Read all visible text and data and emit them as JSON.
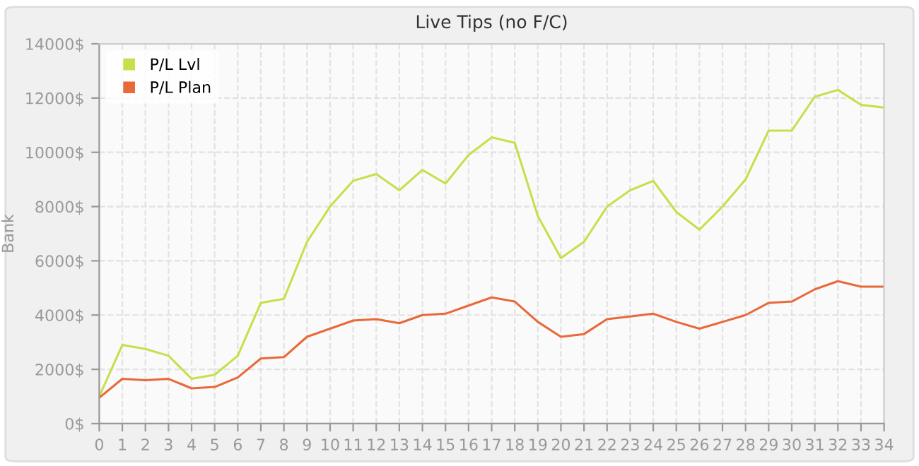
{
  "chart_data": {
    "type": "line",
    "title": "Live Tips (no F/C)",
    "ylabel": "Bank",
    "x": [
      0,
      1,
      2,
      3,
      4,
      5,
      6,
      7,
      8,
      9,
      10,
      11,
      12,
      13,
      14,
      15,
      16,
      17,
      18,
      19,
      20,
      21,
      22,
      23,
      24,
      25,
      26,
      27,
      28,
      29,
      30,
      31,
      32,
      33,
      34
    ],
    "series": [
      {
        "name": "P/L Lvl",
        "color": "#c5e04a",
        "values": [
          1000,
          2900,
          2750,
          2500,
          1650,
          1800,
          2500,
          4450,
          4600,
          6700,
          8000,
          8950,
          9200,
          8600,
          9350,
          8850,
          9900,
          10550,
          10350,
          7650,
          6100,
          6700,
          8000,
          8600,
          8950,
          7800,
          7150,
          8000,
          9000,
          10800,
          10800,
          12050,
          12300,
          11750,
          11650
        ]
      },
      {
        "name": "P/L Plan",
        "color": "#e8693a",
        "values": [
          950,
          1650,
          1600,
          1650,
          1300,
          1350,
          1700,
          2400,
          2450,
          3200,
          3500,
          3800,
          3850,
          3700,
          4000,
          4050,
          4350,
          4650,
          4500,
          3750,
          3200,
          3300,
          3850,
          3950,
          4050,
          3750,
          3500,
          3750,
          4000,
          4450,
          4500,
          4950,
          5250,
          5050,
          5050
        ]
      }
    ],
    "xlim": [
      0,
      34
    ],
    "xticks": [
      0,
      1,
      2,
      3,
      4,
      5,
      6,
      7,
      8,
      9,
      10,
      11,
      12,
      13,
      14,
      15,
      16,
      17,
      18,
      19,
      20,
      21,
      22,
      23,
      24,
      25,
      26,
      27,
      28,
      29,
      30,
      31,
      32,
      33,
      34
    ],
    "ylim": [
      0,
      14000
    ],
    "yticks": [
      {
        "value": 0,
        "label": "0$"
      },
      {
        "value": 2000,
        "label": "2000$"
      },
      {
        "value": 4000,
        "label": "4000$"
      },
      {
        "value": 6000,
        "label": "6000$"
      },
      {
        "value": 8000,
        "label": "8000$"
      },
      {
        "value": 10000,
        "label": "10000$"
      },
      {
        "value": 12000,
        "label": "12000$"
      },
      {
        "value": 14000,
        "label": "14000$"
      }
    ],
    "grid": true,
    "legend": "top left",
    "marker": "none",
    "line_style": "solid"
  }
}
